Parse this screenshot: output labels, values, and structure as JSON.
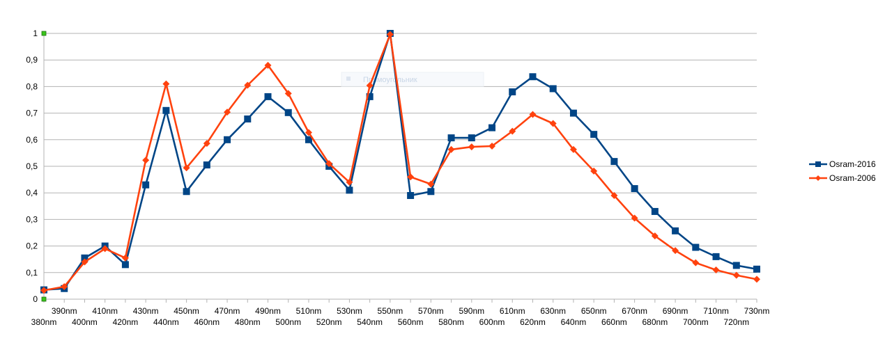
{
  "chart_data": {
    "type": "line",
    "title": "",
    "xlabel": "",
    "ylabel": "",
    "ylim": [
      0,
      1
    ],
    "yticks": [
      "0",
      "0,1",
      "0,2",
      "0,3",
      "0,4",
      "0,5",
      "0,6",
      "0,7",
      "0,8",
      "0,9",
      "1"
    ],
    "grid": "horizontal",
    "legend": "right",
    "categories": [
      "380nm",
      "390nm",
      "400nm",
      "410nm",
      "420nm",
      "430nm",
      "440nm",
      "450nm",
      "460nm",
      "470nm",
      "480nm",
      "490nm",
      "500nm",
      "510nm",
      "520nm",
      "530nm",
      "540nm",
      "550nm",
      "560nm",
      "570nm",
      "580nm",
      "590nm",
      "600nm",
      "610nm",
      "620nm",
      "630nm",
      "640nm",
      "650nm",
      "660nm",
      "670nm",
      "680nm",
      "690nm",
      "700nm",
      "710nm",
      "720nm",
      "730nm"
    ],
    "series": [
      {
        "name": "Osram-2016",
        "color": "#004586",
        "marker": "square",
        "values": [
          0.035,
          0.04,
          0.155,
          0.2,
          0.13,
          0.43,
          0.71,
          0.405,
          0.505,
          0.6,
          0.678,
          0.762,
          0.702,
          0.6,
          0.5,
          0.41,
          0.762,
          1.0,
          0.39,
          0.405,
          0.607,
          0.607,
          0.645,
          0.78,
          0.837,
          0.792,
          0.7,
          0.62,
          0.518,
          0.416,
          0.33,
          0.257,
          0.195,
          0.16,
          0.127,
          0.113
        ]
      },
      {
        "name": "Osram-2006",
        "color": "#ff420e",
        "marker": "diamond",
        "values": [
          0.033,
          0.047,
          0.14,
          0.19,
          0.155,
          0.523,
          0.81,
          0.494,
          0.586,
          0.704,
          0.805,
          0.88,
          0.774,
          0.627,
          0.51,
          0.44,
          0.804,
          0.996,
          0.46,
          0.433,
          0.563,
          0.573,
          0.576,
          0.632,
          0.695,
          0.661,
          0.563,
          0.482,
          0.39,
          0.305,
          0.238,
          0.183,
          0.137,
          0.11,
          0.09,
          0.075
        ]
      }
    ]
  },
  "colors": {
    "grid": "#b3b3b3",
    "axis": "#b3b3b3",
    "background": "#ffffff",
    "handle": "#39c51b"
  },
  "overlay": {
    "ghost_text": "Прямоугольник"
  }
}
